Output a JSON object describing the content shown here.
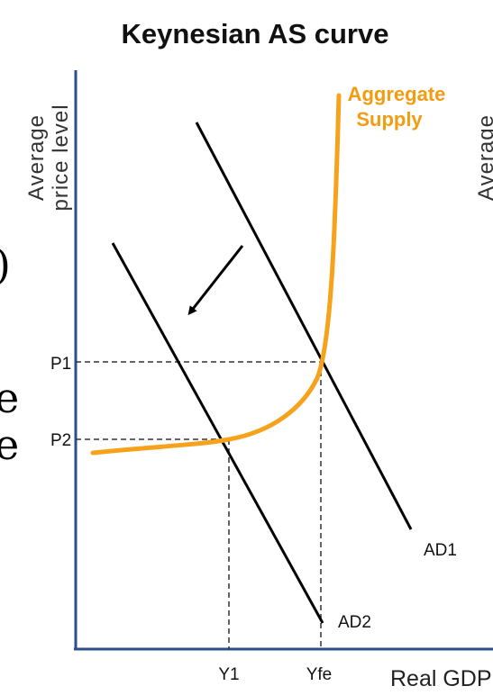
{
  "title": "Keynesian AS curve",
  "y_axis_label_line1": "Average",
  "y_axis_label_line2": "price level",
  "right_axis_label_partial": "Average",
  "x_axis_label": "Real GDP",
  "left_clipped_text": [
    ")",
    "e",
    "e"
  ],
  "as_label_line1": "Aggregate",
  "as_label_line2": "Supply",
  "price_levels": {
    "p1": "P1",
    "p2": "P2"
  },
  "output_levels": {
    "y1": "Y1",
    "yfe": "Yfe"
  },
  "curves": {
    "ad1": "AD1",
    "ad2": "AD2"
  },
  "colors": {
    "aggregate_supply": "#F7A21B",
    "aggregate_supply_label": "#F39C12",
    "axis": "#2B4E8C",
    "demand_lines": "#000000",
    "guide_lines": "#333333"
  }
}
